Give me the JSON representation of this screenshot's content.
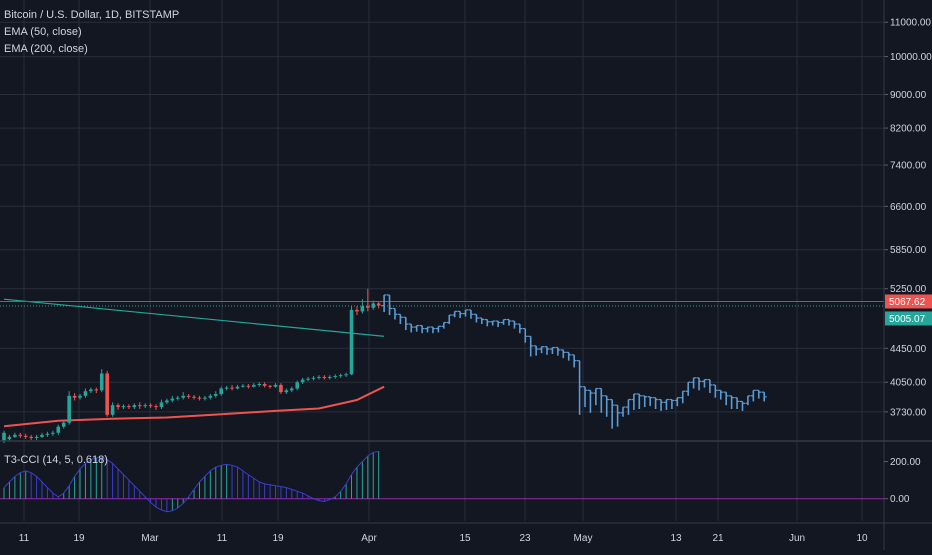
{
  "legend": {
    "symbol": "Bitcoin / U.S. Dollar, 1D, BITSTAMP",
    "ema50": "EMA (50, close)",
    "ema200": "EMA (200, close)",
    "cci": "T3-CCI (14, 5, 0.618)"
  },
  "colors": {
    "background": "#131722",
    "grid": "#2a2e39",
    "up": "#26a69a",
    "down": "#ef5350",
    "projection": "#5b9bd5",
    "ema50": "#26a69a",
    "ema200": "#ef5350",
    "resistance_line": "#ff2b2b",
    "cci_up": "#26a69a",
    "cci_down": "#3c3ccf",
    "cci_zero": "#9c27b0"
  },
  "chart_data": [
    {
      "type": "candlestick",
      "title": "Bitcoin / U.S. Dollar, 1D, BITSTAMP",
      "scale": "log",
      "ylim": [
        3450,
        11700
      ],
      "y_ticks": [
        "11000.00",
        "10000.00",
        "9000.00",
        "8200.00",
        "7400.00",
        "6600.00",
        "5850.00",
        "5250.00",
        "4450.00",
        "4050.00",
        "3730.00"
      ],
      "x_ticks": [
        "11",
        "19",
        "Mar",
        "11",
        "19",
        "Apr",
        "15",
        "23",
        "May",
        "13",
        "21",
        "Jun",
        "10"
      ],
      "price_badges": [
        {
          "label": "5067.62",
          "value": 5067.62,
          "color": "#ef5350"
        },
        {
          "label": "5005.07",
          "value": 5005.07,
          "color": "#26a69a"
        }
      ],
      "resistance_level": 5067.62,
      "ema50": [
        [
          0,
          5100
        ],
        [
          70,
          4600
        ]
      ],
      "ema200": [
        [
          0,
          3585
        ],
        [
          10,
          3640
        ],
        [
          20,
          3660
        ],
        [
          30,
          3672
        ],
        [
          40,
          3705
        ],
        [
          50,
          3740
        ],
        [
          58,
          3765
        ],
        [
          65,
          3855
        ],
        [
          70,
          4000
        ]
      ],
      "candles": [
        [
          3440,
          3520,
          3420,
          3540
        ],
        [
          3460,
          3480,
          3440,
          3500
        ],
        [
          3480,
          3500,
          3470,
          3520
        ],
        [
          3500,
          3490,
          3470,
          3520
        ],
        [
          3490,
          3480,
          3460,
          3510
        ],
        [
          3480,
          3470,
          3450,
          3500
        ],
        [
          3470,
          3480,
          3450,
          3500
        ],
        [
          3480,
          3500,
          3470,
          3520
        ],
        [
          3500,
          3510,
          3480,
          3530
        ],
        [
          3510,
          3520,
          3490,
          3540
        ],
        [
          3520,
          3580,
          3500,
          3600
        ],
        [
          3580,
          3620,
          3560,
          3650
        ],
        [
          3620,
          3900,
          3600,
          3950
        ],
        [
          3900,
          3880,
          3850,
          3930
        ],
        [
          3880,
          3900,
          3860,
          3920
        ],
        [
          3900,
          3950,
          3880,
          3980
        ],
        [
          3950,
          3970,
          3930,
          3990
        ],
        [
          3970,
          3960,
          3930,
          3990
        ],
        [
          3960,
          4150,
          3940,
          4200
        ],
        [
          4150,
          3700,
          3680,
          4180
        ],
        [
          3700,
          3800,
          3680,
          3830
        ],
        [
          3800,
          3780,
          3750,
          3820
        ],
        [
          3780,
          3790,
          3760,
          3810
        ],
        [
          3790,
          3780,
          3760,
          3810
        ],
        [
          3780,
          3800,
          3760,
          3820
        ],
        [
          3800,
          3790,
          3760,
          3830
        ],
        [
          3790,
          3800,
          3770,
          3820
        ],
        [
          3800,
          3790,
          3770,
          3820
        ],
        [
          3790,
          3780,
          3750,
          3810
        ],
        [
          3780,
          3830,
          3760,
          3860
        ],
        [
          3830,
          3850,
          3810,
          3870
        ],
        [
          3850,
          3870,
          3830,
          3900
        ],
        [
          3870,
          3880,
          3850,
          3900
        ],
        [
          3880,
          3900,
          3860,
          3940
        ],
        [
          3900,
          3890,
          3870,
          3920
        ],
        [
          3890,
          3880,
          3860,
          3910
        ],
        [
          3880,
          3870,
          3850,
          3900
        ],
        [
          3870,
          3880,
          3850,
          3900
        ],
        [
          3880,
          3900,
          3860,
          3920
        ],
        [
          3900,
          3920,
          3880,
          3950
        ],
        [
          3920,
          3980,
          3900,
          4000
        ],
        [
          3980,
          3990,
          3960,
          4010
        ],
        [
          3990,
          3980,
          3960,
          4020
        ],
        [
          3980,
          4000,
          3970,
          4020
        ],
        [
          4000,
          4010,
          3990,
          4030
        ],
        [
          4010,
          4000,
          3980,
          4030
        ],
        [
          4000,
          4020,
          3990,
          4040
        ],
        [
          4020,
          4030,
          4000,
          4050
        ],
        [
          4030,
          4010,
          3990,
          4050
        ],
        [
          4010,
          4000,
          3980,
          4020
        ],
        [
          4000,
          4020,
          3990,
          4040
        ],
        [
          4020,
          3940,
          3920,
          4040
        ],
        [
          3940,
          3960,
          3920,
          3980
        ],
        [
          3960,
          3980,
          3940,
          4000
        ],
        [
          3980,
          4050,
          3960,
          4070
        ],
        [
          4050,
          4080,
          4030,
          4100
        ],
        [
          4080,
          4090,
          4060,
          4110
        ],
        [
          4090,
          4100,
          4070,
          4120
        ],
        [
          4100,
          4110,
          4080,
          4130
        ],
        [
          4110,
          4100,
          4080,
          4130
        ],
        [
          4100,
          4110,
          4080,
          4130
        ],
        [
          4110,
          4120,
          4090,
          4140
        ],
        [
          4120,
          4130,
          4100,
          4150
        ],
        [
          4130,
          4140,
          4110,
          4160
        ],
        [
          4140,
          4950,
          4130,
          5000
        ],
        [
          4950,
          4930,
          4880,
          5000
        ],
        [
          4930,
          5000,
          4900,
          5100
        ],
        [
          5000,
          4980,
          4930,
          5250
        ],
        [
          4980,
          5040,
          4950,
          5080
        ],
        [
          5040,
          5010,
          4970,
          5060
        ]
      ],
      "projection_start_index": 70,
      "projection": [
        [
          5010,
          5160,
          4920
        ],
        [
          5160,
          4970,
          4880
        ],
        [
          4970,
          4890,
          4820
        ],
        [
          4890,
          4850,
          4760
        ],
        [
          4850,
          4760,
          4680
        ],
        [
          4760,
          4720,
          4650
        ],
        [
          4720,
          4740,
          4660
        ],
        [
          4740,
          4700,
          4640
        ],
        [
          4700,
          4720,
          4650
        ],
        [
          4720,
          4700,
          4640
        ],
        [
          4700,
          4730,
          4650
        ],
        [
          4730,
          4780,
          4700
        ],
        [
          4780,
          4880,
          4760
        ],
        [
          4880,
          4930,
          4850
        ],
        [
          4930,
          4900,
          4840
        ],
        [
          4900,
          4950,
          4860
        ],
        [
          4950,
          4890,
          4830
        ],
        [
          4890,
          4840,
          4780
        ],
        [
          4840,
          4820,
          4760
        ],
        [
          4820,
          4790,
          4730
        ],
        [
          4790,
          4800,
          4740
        ],
        [
          4800,
          4780,
          4720
        ],
        [
          4780,
          4820,
          4750
        ],
        [
          4820,
          4800,
          4740
        ],
        [
          4800,
          4760,
          4700
        ],
        [
          4760,
          4700,
          4640
        ],
        [
          4700,
          4600,
          4520
        ],
        [
          4600,
          4480,
          4350
        ],
        [
          4480,
          4440,
          4360
        ],
        [
          4440,
          4470,
          4390
        ],
        [
          4470,
          4440,
          4370
        ],
        [
          4440,
          4460,
          4380
        ],
        [
          4460,
          4430,
          4360
        ],
        [
          4430,
          4400,
          4330
        ],
        [
          4400,
          4370,
          4300
        ],
        [
          4370,
          4300,
          4220
        ],
        [
          4300,
          4000,
          3700
        ],
        [
          4000,
          3960,
          3780
        ],
        [
          3960,
          3930,
          3720
        ],
        [
          3930,
          3980,
          3800
        ],
        [
          3980,
          3900,
          3720
        ],
        [
          3900,
          3860,
          3680
        ],
        [
          3860,
          3800,
          3560
        ],
        [
          3800,
          3720,
          3580
        ],
        [
          3720,
          3780,
          3680
        ],
        [
          3780,
          3860,
          3700
        ],
        [
          3860,
          3920,
          3750
        ],
        [
          3920,
          3900,
          3760
        ],
        [
          3900,
          3890,
          3780
        ],
        [
          3890,
          3880,
          3790
        ],
        [
          3880,
          3860,
          3760
        ],
        [
          3860,
          3830,
          3740
        ],
        [
          3830,
          3860,
          3750
        ],
        [
          3860,
          3850,
          3760
        ],
        [
          3850,
          3880,
          3790
        ],
        [
          3880,
          3950,
          3820
        ],
        [
          3950,
          4050,
          3900
        ],
        [
          4050,
          4100,
          3980
        ],
        [
          4100,
          4060,
          3960
        ],
        [
          4060,
          4080,
          3990
        ],
        [
          4080,
          4020,
          3930
        ],
        [
          4020,
          3960,
          3880
        ],
        [
          3960,
          3940,
          3860
        ],
        [
          3940,
          3900,
          3800
        ],
        [
          3900,
          3880,
          3760
        ],
        [
          3880,
          3840,
          3760
        ],
        [
          3840,
          3820,
          3740
        ],
        [
          3820,
          3900,
          3800
        ],
        [
          3900,
          3960,
          3840
        ],
        [
          3960,
          3940,
          3870
        ],
        [
          3940,
          3890,
          3840
        ]
      ]
    },
    {
      "type": "bar",
      "title": "T3-CCI (14, 5, 0.618)",
      "ylim": [
        -120,
        300
      ],
      "y_ticks": [
        "200.00",
        "0.00"
      ],
      "values": [
        60,
        90,
        120,
        140,
        150,
        140,
        120,
        90,
        60,
        30,
        10,
        30,
        70,
        120,
        160,
        190,
        210,
        220,
        220,
        210,
        190,
        160,
        130,
        100,
        70,
        40,
        10,
        -20,
        -45,
        -60,
        -70,
        -65,
        -50,
        -25,
        10,
        50,
        90,
        120,
        150,
        170,
        180,
        185,
        180,
        170,
        150,
        130,
        110,
        90,
        80,
        75,
        70,
        65,
        60,
        50,
        40,
        30,
        15,
        0,
        -10,
        -15,
        -5,
        10,
        40,
        80,
        130,
        170,
        200,
        230,
        250,
        255
      ]
    }
  ]
}
